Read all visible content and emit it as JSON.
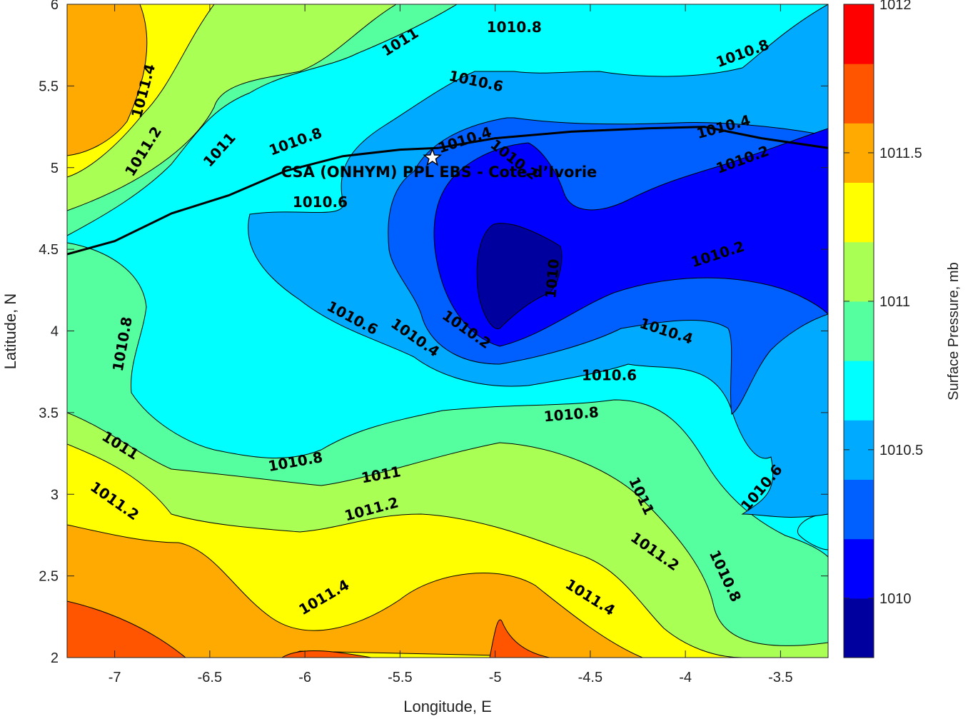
{
  "chart_data": {
    "type": "contour",
    "title": "CSA (ONHYM) PPL EBS  - Cote d’Ivorie",
    "xlabel": "Longitude, E",
    "ylabel": "Latitude, N",
    "xlim": [
      -7.25,
      -3.25
    ],
    "ylim": [
      2,
      6
    ],
    "xticks": [
      -7,
      -6.5,
      -6,
      -5.5,
      -5,
      -4.5,
      -4,
      -3.5
    ],
    "yticks": [
      2,
      2.5,
      3,
      3.5,
      4,
      4.5,
      5,
      5.5,
      6
    ],
    "colorbar": {
      "label": "Surface Pressure, mb",
      "range": [
        1009.8,
        1012
      ],
      "ticks": [
        1010,
        1010.5,
        1011,
        1011.5,
        1012
      ],
      "levels": [
        1009.8,
        1010,
        1010.2,
        1010.4,
        1010.6,
        1010.8,
        1011,
        1011.2,
        1011.4,
        1011.6,
        1011.8,
        1012
      ],
      "colors": [
        "#00009f",
        "#0000ff",
        "#005fff",
        "#00aaff",
        "#00ffff",
        "#55ff9f",
        "#aaff55",
        "#ffff00",
        "#ffaa00",
        "#ff5500",
        "#ff0000",
        "#aa0000"
      ]
    },
    "marker": {
      "lon": -5.33,
      "lat": 5.06,
      "symbol": "star"
    },
    "coastline_points": [
      [
        -7.25,
        4.47
      ],
      [
        -7.0,
        4.55
      ],
      [
        -6.7,
        4.72
      ],
      [
        -6.4,
        4.83
      ],
      [
        -6.1,
        4.98
      ],
      [
        -5.8,
        5.07
      ],
      [
        -5.5,
        5.11
      ],
      [
        -5.3,
        5.12
      ],
      [
        -5.0,
        5.18
      ],
      [
        -4.6,
        5.22
      ],
      [
        -4.2,
        5.24
      ],
      [
        -3.9,
        5.25
      ],
      [
        -3.6,
        5.18
      ],
      [
        -3.25,
        5.12
      ]
    ],
    "contour_labels": [
      {
        "text": "1010.8",
        "lon": -4.9,
        "lat": 5.86,
        "angle": 0
      },
      {
        "text": "1011",
        "lon": -5.5,
        "lat": 5.77,
        "angle": -32
      },
      {
        "text": "1010.8",
        "lon": -3.7,
        "lat": 5.7,
        "angle": -20
      },
      {
        "text": "1011.4",
        "lon": -6.85,
        "lat": 5.47,
        "angle": -75
      },
      {
        "text": "1010.6",
        "lon": -5.1,
        "lat": 5.53,
        "angle": 12
      },
      {
        "text": "1011.2",
        "lon": -6.85,
        "lat": 5.1,
        "angle": -58
      },
      {
        "text": "1011",
        "lon": -6.45,
        "lat": 5.11,
        "angle": -48
      },
      {
        "text": "1010.8",
        "lon": -6.05,
        "lat": 5.16,
        "angle": -20
      },
      {
        "text": "1010.4",
        "lon": -5.16,
        "lat": 5.17,
        "angle": -18
      },
      {
        "text": "1010.4",
        "lon": -3.8,
        "lat": 5.25,
        "angle": -15
      },
      {
        "text": "1010.2",
        "lon": -3.7,
        "lat": 5.05,
        "angle": -20
      },
      {
        "text": "1010.2",
        "lon": -4.9,
        "lat": 5.05,
        "angle": 38
      },
      {
        "text": "1010.6",
        "lon": -5.92,
        "lat": 4.79,
        "angle": 0
      },
      {
        "text": "1010",
        "lon": -4.7,
        "lat": 4.32,
        "angle": -85
      },
      {
        "text": "1010.2",
        "lon": -3.83,
        "lat": 4.47,
        "angle": -18
      },
      {
        "text": "1010.8",
        "lon": -6.96,
        "lat": 3.92,
        "angle": -80
      },
      {
        "text": "1010.6",
        "lon": -5.75,
        "lat": 4.08,
        "angle": 28
      },
      {
        "text": "1010.2",
        "lon": -5.15,
        "lat": 4.01,
        "angle": 35
      },
      {
        "text": "1010.4",
        "lon": -5.42,
        "lat": 3.96,
        "angle": 35
      },
      {
        "text": "1010.4",
        "lon": -4.1,
        "lat": 4.0,
        "angle": 18
      },
      {
        "text": "1010.6",
        "lon": -4.4,
        "lat": 3.73,
        "angle": 0
      },
      {
        "text": "1010.8",
        "lon": -4.6,
        "lat": 3.49,
        "angle": -5
      },
      {
        "text": "1011",
        "lon": -6.97,
        "lat": 3.3,
        "angle": 32
      },
      {
        "text": "1010.8",
        "lon": -6.05,
        "lat": 3.2,
        "angle": -10
      },
      {
        "text": "1011",
        "lon": -5.6,
        "lat": 3.12,
        "angle": -10
      },
      {
        "text": "1011.2",
        "lon": -7.0,
        "lat": 2.96,
        "angle": 35
      },
      {
        "text": "1011.2",
        "lon": -5.65,
        "lat": 2.91,
        "angle": -15
      },
      {
        "text": "1011",
        "lon": -4.23,
        "lat": 2.99,
        "angle": 65
      },
      {
        "text": "1010.6",
        "lon": -3.6,
        "lat": 3.04,
        "angle": -50
      },
      {
        "text": "1011.2",
        "lon": -4.16,
        "lat": 2.65,
        "angle": 35
      },
      {
        "text": "1010.8",
        "lon": -3.79,
        "lat": 2.5,
        "angle": 65
      },
      {
        "text": "1011.4",
        "lon": -5.9,
        "lat": 2.37,
        "angle": -30
      },
      {
        "text": "1011.4",
        "lon": -4.5,
        "lat": 2.37,
        "angle": 32
      }
    ]
  }
}
